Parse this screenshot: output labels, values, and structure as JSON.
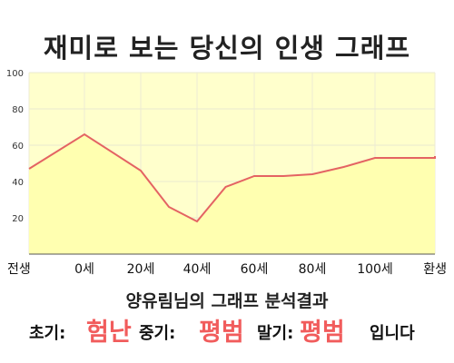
{
  "title": "재미로 보는 당신의 인생 그래프",
  "summary": "양유림님의 그래프 분석결과",
  "result": {
    "early_label": "초기:",
    "early_value": "험난",
    "mid_label": "중기:",
    "mid_value": "평범",
    "late_label": "말기:",
    "late_value": "평범",
    "ending": "입니다"
  },
  "colors": {
    "plot_background": "#ffffcc",
    "area_fill": "#ffffb0",
    "line": "#e46363",
    "highlight_text": "#f15c5c"
  },
  "chart_data": {
    "type": "area",
    "title": "재미로 보는 당신의 인생 그래프",
    "xlabel": "",
    "ylabel": "",
    "x_tick_labels": [
      "전생",
      "0세",
      "20세",
      "40세",
      "60세",
      "80세",
      "100세",
      "환생"
    ],
    "y_ticks": [
      "100",
      "80",
      "60",
      "40",
      "20"
    ],
    "ylim": [
      0,
      100
    ],
    "grid": true,
    "series": [
      {
        "x": [
          "전생",
          "0세",
          "20세",
          "30세",
          "40세",
          "50세",
          "60세",
          "70세",
          "80세",
          "90세",
          "100세",
          "110세",
          "환생"
        ],
        "values": [
          47,
          66,
          46,
          26,
          18,
          37,
          43,
          43,
          44,
          48,
          53,
          53,
          54
        ]
      }
    ]
  }
}
